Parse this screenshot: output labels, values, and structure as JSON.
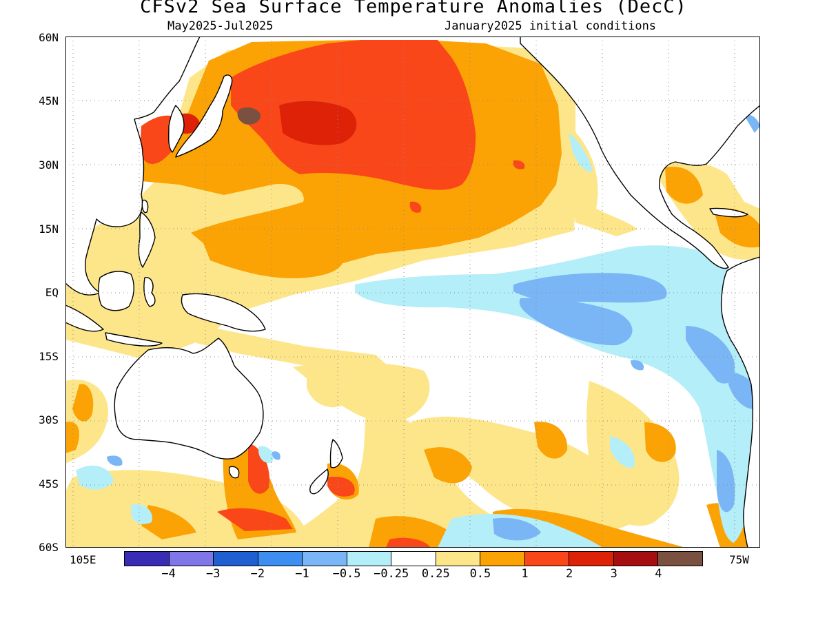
{
  "title": "CFSv2 Sea Surface Temperature Anomalies (DecC)",
  "period": "May2025-Jul2025",
  "initial_conditions": "January2025 initial conditions",
  "lat_labels": [
    "60N",
    "45N",
    "30N",
    "15N",
    "EQ",
    "15S",
    "30S",
    "45S",
    "60S"
  ],
  "lon_labels": {
    "left": "105E",
    "right": "75W"
  },
  "colorbar": {
    "labels": [
      "-4",
      "-3",
      "-2",
      "-1",
      "-0.5",
      "-0.25",
      "0.25",
      "0.5",
      "1",
      "2",
      "3",
      "4"
    ],
    "colors": [
      "#3a2db5",
      "#7f76e8",
      "#1f5fcf",
      "#3d8ef0",
      "#7ab6f5",
      "#b4eef8",
      "#ffffff",
      "#fde68a",
      "#fba205",
      "#f9471a",
      "#de2208",
      "#a50f0f",
      "#7a5040"
    ]
  },
  "map": {
    "land_color": "#ffffff",
    "coastline_color": "#000000",
    "gridlines": "dotted"
  }
}
